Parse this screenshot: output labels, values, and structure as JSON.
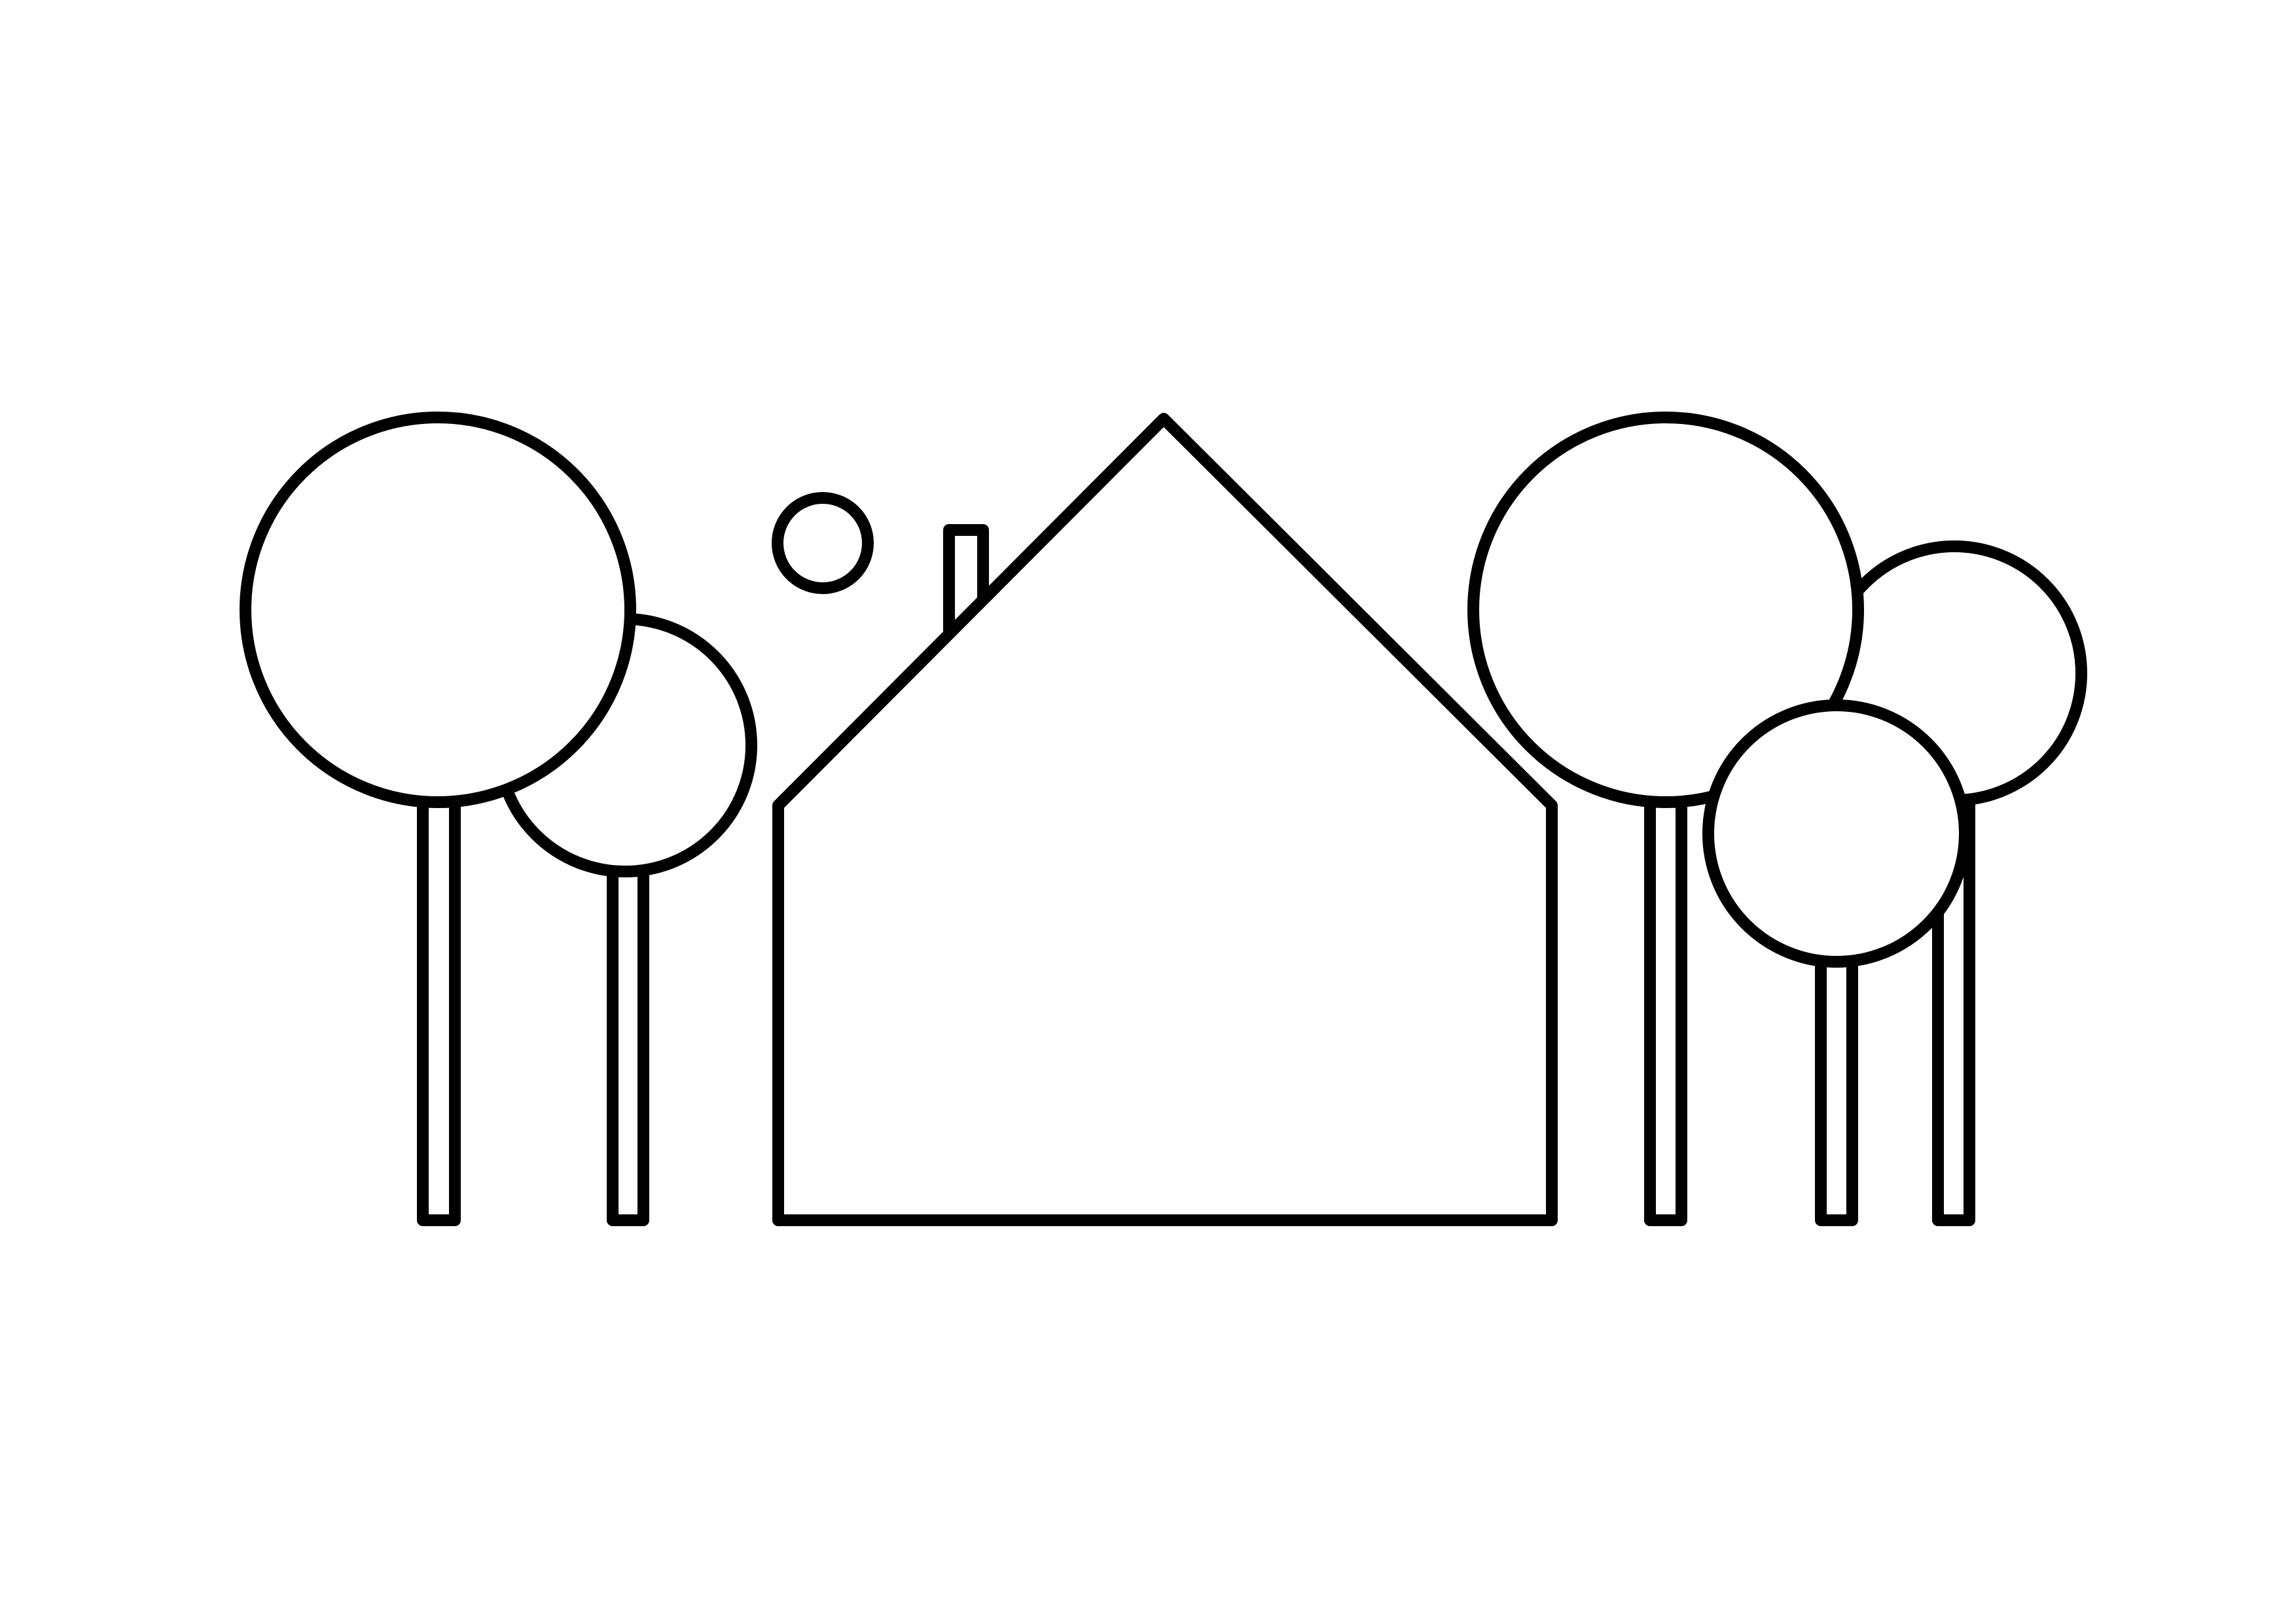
{
  "scene": {
    "description_elements": [
      "house",
      "chimney",
      "sun",
      "trees"
    ],
    "colors": {
      "line": "#000000",
      "background": "#ffffff"
    }
  }
}
